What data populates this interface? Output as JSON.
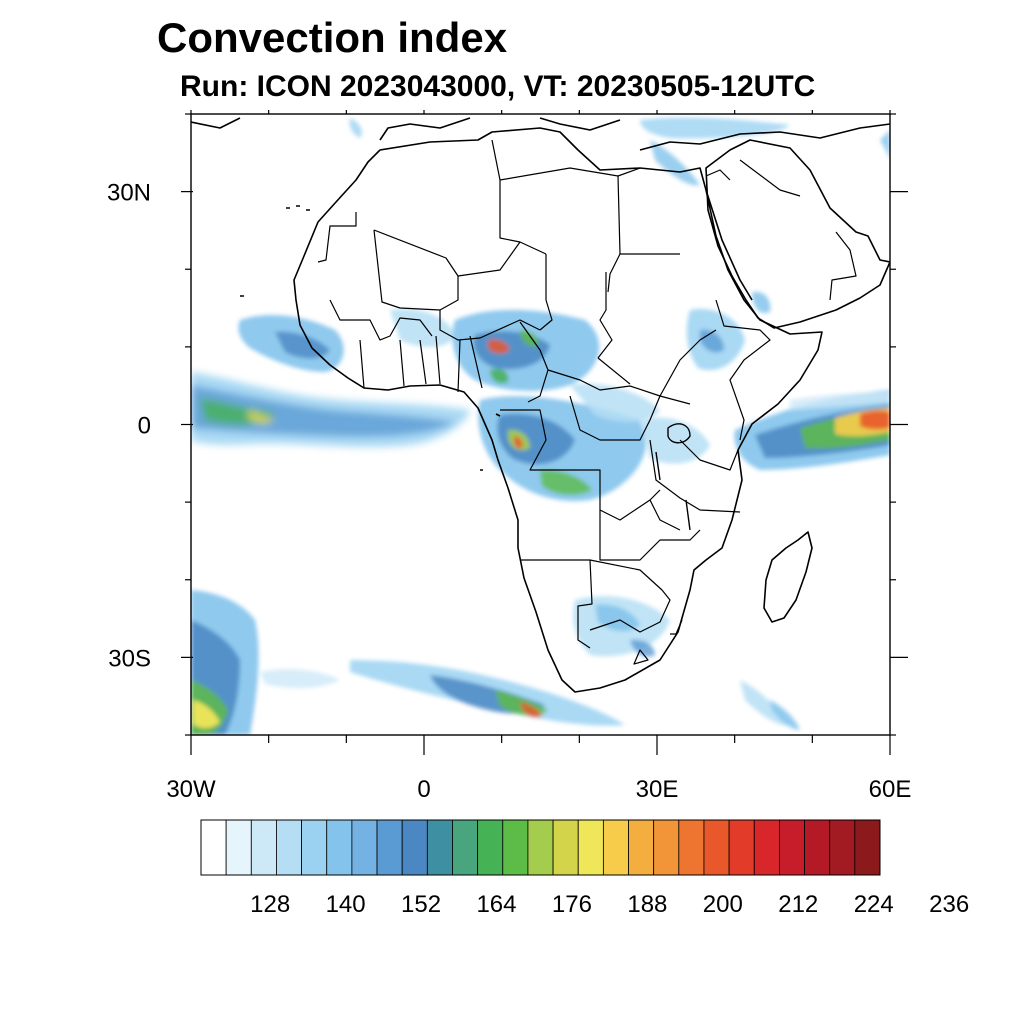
{
  "header": {
    "title": "Convection index",
    "subtitle": "Run: ICON 2023043000,  VT: 20230505-12UTC"
  },
  "map": {
    "extent": {
      "lon_min": -30,
      "lon_max": 60,
      "lat_min": -40,
      "lat_max": 40
    },
    "lat_ticks": [
      {
        "lat": 30,
        "label": "30N"
      },
      {
        "lat": 0,
        "label": "0"
      },
      {
        "lat": -30,
        "label": "30S"
      }
    ],
    "lon_ticks": [
      {
        "lon": -30,
        "label": "30W"
      },
      {
        "lon": 0,
        "label": "0"
      },
      {
        "lon": 30,
        "label": "30E"
      },
      {
        "lon": 60,
        "label": "60E"
      }
    ],
    "minor_lat_ticks": [
      40,
      20,
      10,
      -10,
      -20,
      -40
    ],
    "minor_lon_ticks": [
      -20,
      -10,
      10,
      20,
      40,
      50
    ]
  },
  "colorbar": {
    "colors": [
      "#ffffff",
      "#e6f4fc",
      "#cde9f8",
      "#b5def5",
      "#9bd2f2",
      "#83c3ec",
      "#73b2e2",
      "#5b9bd4",
      "#4b88c3",
      "#3f8fa3",
      "#48a57e",
      "#45b256",
      "#5dbb48",
      "#a5cd4d",
      "#d4d44b",
      "#f0e65a",
      "#f7cc4b",
      "#f4ae3f",
      "#f29438",
      "#ee7530",
      "#e8582a",
      "#e33b2a",
      "#d8262a",
      "#c71d2a",
      "#b41a26",
      "#a21a22",
      "#8c1a1c"
    ],
    "labels": [
      {
        "index": 3,
        "text": "128"
      },
      {
        "index": 6,
        "text": "140"
      },
      {
        "index": 9,
        "text": "152"
      },
      {
        "index": 12,
        "text": "164"
      },
      {
        "index": 15,
        "text": "176"
      },
      {
        "index": 18,
        "text": "188"
      },
      {
        "index": 21,
        "text": "200"
      },
      {
        "index": 24,
        "text": "212"
      },
      {
        "index": 27,
        "text": "224"
      },
      {
        "index": 30,
        "text": "236"
      }
    ]
  }
}
